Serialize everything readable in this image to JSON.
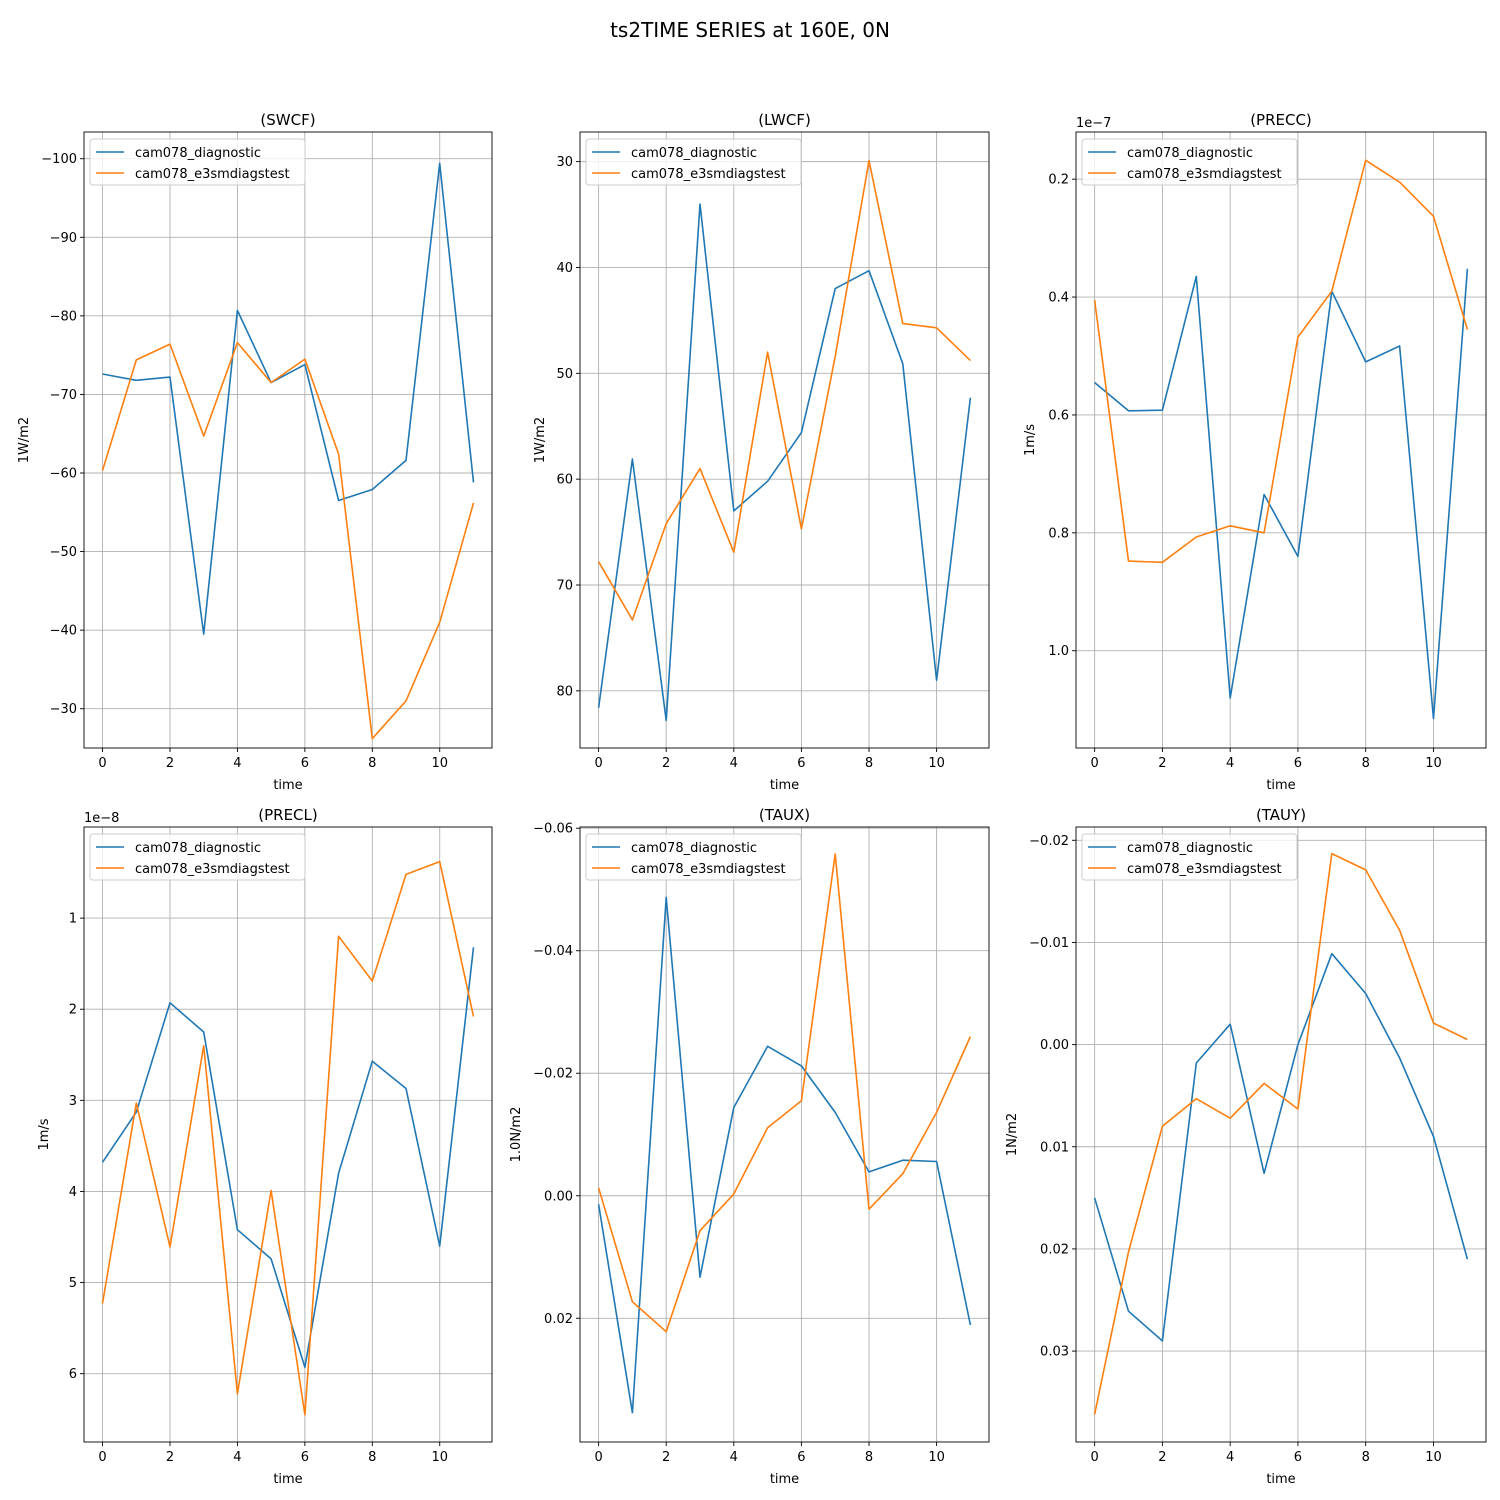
{
  "suptitle": "ts2TIME SERIES at 160E, 0N",
  "colors": {
    "series0": "#1f77b4",
    "series1": "#ff7f0e",
    "grid": "#b0b0b0"
  },
  "chart_data": [
    {
      "type": "line",
      "title": "(SWCF)",
      "xlabel": "time",
      "ylabel": "1W/m2",
      "xlim": [
        -0.55,
        11.55
      ],
      "ylim": [
        -25.0,
        -103.4
      ],
      "y_inverted": true,
      "xticks": [
        0,
        2,
        4,
        6,
        8,
        10
      ],
      "yticks": [
        -100,
        -90,
        -80,
        -70,
        -60,
        -50,
        -40,
        -30
      ],
      "ytick_labels": [
        "−100",
        "−90",
        "−80",
        "−70",
        "−60",
        "−50",
        "−40",
        "−30"
      ],
      "offset_text": "",
      "grid": true,
      "legend": "upper left",
      "x": [
        0,
        1,
        2,
        3,
        4,
        5,
        6,
        7,
        8,
        9,
        10,
        11
      ],
      "series": [
        {
          "name": "cam078_diagnostic",
          "values": [
            -72.6,
            -71.8,
            -72.2,
            -39.5,
            -80.7,
            -71.5,
            -73.8,
            -56.5,
            -57.9,
            -61.6,
            -99.4,
            -58.8
          ]
        },
        {
          "name": "cam078_e3smdiagstest",
          "values": [
            -60.3,
            -74.4,
            -76.4,
            -64.7,
            -76.6,
            -71.5,
            -74.5,
            -62.4,
            -26.2,
            -31.0,
            -41.0,
            -56.2
          ]
        }
      ]
    },
    {
      "type": "line",
      "title": "(LWCF)",
      "xlabel": "time",
      "ylabel": "1W/m2",
      "xlim": [
        -0.55,
        11.55
      ],
      "ylim": [
        85.4,
        27.2
      ],
      "y_inverted": true,
      "xticks": [
        0,
        2,
        4,
        6,
        8,
        10
      ],
      "yticks": [
        30,
        40,
        50,
        60,
        70,
        80
      ],
      "ytick_labels": [
        "30",
        "40",
        "50",
        "60",
        "70",
        "80"
      ],
      "offset_text": "",
      "grid": true,
      "legend": "upper left",
      "x": [
        0,
        1,
        2,
        3,
        4,
        5,
        6,
        7,
        8,
        9,
        10,
        11
      ],
      "series": [
        {
          "name": "cam078_diagnostic",
          "values": [
            81.6,
            58.1,
            82.8,
            34.0,
            63.0,
            60.2,
            55.6,
            42.0,
            40.3,
            49.1,
            79.0,
            52.3
          ]
        },
        {
          "name": "cam078_e3smdiagstest",
          "values": [
            67.8,
            73.3,
            64.2,
            59.0,
            66.9,
            48.0,
            64.7,
            48.4,
            29.9,
            45.3,
            45.7,
            48.8
          ]
        }
      ]
    },
    {
      "type": "line",
      "title": "(PRECC)",
      "xlabel": "time",
      "ylabel": "1m/s",
      "xlim": [
        -0.55,
        11.55
      ],
      "ylim": [
        1.165,
        0.12
      ],
      "y_inverted": true,
      "xticks": [
        0,
        2,
        4,
        6,
        8,
        10
      ],
      "yticks": [
        0.2,
        0.4,
        0.6,
        0.8,
        1.0
      ],
      "ytick_labels": [
        "0.2",
        "0.4",
        "0.6",
        "0.8",
        "1.0"
      ],
      "offset_text": "1e−7",
      "grid": true,
      "legend": "upper left",
      "x": [
        0,
        1,
        2,
        3,
        4,
        5,
        6,
        7,
        8,
        9,
        10,
        11
      ],
      "series": [
        {
          "name": "cam078_diagnostic",
          "values": [
            0.545,
            0.593,
            0.592,
            0.365,
            1.08,
            0.735,
            0.84,
            0.39,
            0.51,
            0.483,
            1.115,
            0.352
          ]
        },
        {
          "name": "cam078_e3smdiagstest",
          "values": [
            0.405,
            0.848,
            0.85,
            0.807,
            0.788,
            0.8,
            0.468,
            0.39,
            0.168,
            0.205,
            0.263,
            0.455
          ]
        }
      ]
    },
    {
      "type": "line",
      "title": "(PRECL)",
      "xlabel": "time",
      "ylabel": "1m/s",
      "xlim": [
        -0.55,
        11.55
      ],
      "ylim": [
        6.75,
        0.0
      ],
      "y_inverted": true,
      "xticks": [
        0,
        2,
        4,
        6,
        8,
        10
      ],
      "yticks": [
        1,
        2,
        3,
        4,
        5,
        6
      ],
      "ytick_labels": [
        "1",
        "2",
        "3",
        "4",
        "5",
        "6"
      ],
      "offset_text": "1e−8",
      "grid": true,
      "legend": "upper left",
      "x": [
        0,
        1,
        2,
        3,
        4,
        5,
        6,
        7,
        8,
        9,
        10,
        11
      ],
      "series": [
        {
          "name": "cam078_diagnostic",
          "values": [
            3.68,
            3.13,
            1.93,
            2.25,
            4.42,
            4.74,
            5.93,
            3.8,
            2.57,
            2.87,
            4.6,
            1.32
          ]
        },
        {
          "name": "cam078_e3smdiagstest",
          "values": [
            5.23,
            3.03,
            4.61,
            2.4,
            6.22,
            3.99,
            6.45,
            1.2,
            1.69,
            0.52,
            0.38,
            2.08
          ]
        }
      ]
    },
    {
      "type": "line",
      "title": "(TAUX)",
      "xlabel": "time",
      "ylabel": "1.0N/m2",
      "xlim": [
        -0.55,
        11.55
      ],
      "ylim": [
        0.0402,
        -0.0602
      ],
      "y_inverted": true,
      "xticks": [
        0,
        2,
        4,
        6,
        8,
        10
      ],
      "yticks": [
        -0.06,
        -0.04,
        -0.02,
        0.0,
        0.02
      ],
      "ytick_labels": [
        "−0.06",
        "−0.04",
        "−0.02",
        "0.00",
        "0.02"
      ],
      "offset_text": "",
      "grid": true,
      "legend": "upper left",
      "x": [
        0,
        1,
        2,
        3,
        4,
        5,
        6,
        7,
        8,
        9,
        10,
        11
      ],
      "series": [
        {
          "name": "cam078_diagnostic",
          "values": [
            0.0014,
            0.0354,
            -0.0487,
            0.0133,
            -0.0144,
            -0.0244,
            -0.0212,
            -0.0136,
            -0.0039,
            -0.0058,
            -0.0056,
            0.0211
          ]
        },
        {
          "name": "cam078_e3smdiagstest",
          "values": [
            -0.0013,
            0.0173,
            0.0222,
            0.0057,
            -0.0003,
            -0.0111,
            -0.0155,
            -0.0558,
            0.0022,
            -0.0036,
            -0.0136,
            -0.026
          ]
        }
      ]
    },
    {
      "type": "line",
      "title": "(TAUY)",
      "xlabel": "time",
      "ylabel": "1N/m2",
      "xlim": [
        -0.55,
        11.55
      ],
      "ylim": [
        0.0389,
        -0.0213
      ],
      "y_inverted": true,
      "xticks": [
        0,
        2,
        4,
        6,
        8,
        10
      ],
      "yticks": [
        -0.02,
        -0.01,
        0.0,
        0.01,
        0.02,
        0.03
      ],
      "ytick_labels": [
        "−0.02",
        "−0.01",
        "0.00",
        "0.01",
        "0.02",
        "0.03"
      ],
      "offset_text": "",
      "grid": true,
      "legend": "upper left",
      "x": [
        0,
        1,
        2,
        3,
        4,
        5,
        6,
        7,
        8,
        9,
        10,
        11
      ],
      "series": [
        {
          "name": "cam078_diagnostic",
          "values": [
            0.015,
            0.0261,
            0.029,
            0.0018,
            -0.002,
            0.0126,
            0.0,
            -0.0089,
            -0.005,
            0.0013,
            0.009,
            0.021
          ]
        },
        {
          "name": "cam078_e3smdiagstest",
          "values": [
            0.0362,
            0.0203,
            0.008,
            0.0053,
            0.0072,
            0.0038,
            0.0063,
            -0.0187,
            -0.0171,
            -0.0112,
            -0.0021,
            -0.0005
          ]
        }
      ]
    }
  ]
}
